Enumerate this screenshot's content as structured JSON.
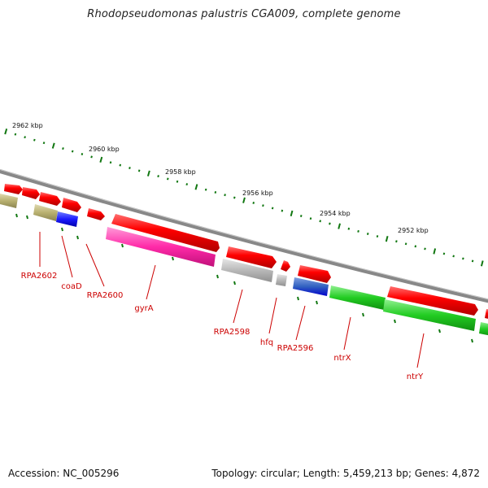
{
  "title": "Rhodopseudomonas palustris CGA009, complete genome",
  "footer": {
    "accession": "Accession: NC_005296",
    "topology": "Topology: circular; Length: 5,459,213 bp; Genes: 4,872"
  },
  "coordinate_labels": [
    "2962 kbp",
    "2960 kbp",
    "2958 kbp",
    "2956 kbp",
    "2954 kbp",
    "2952 kbp"
  ],
  "gene_labels": [
    "RPA2602",
    "coaD",
    "RPA2600",
    "gyrA",
    "RPA2598",
    "hfq",
    "RPA2596",
    "ntrX",
    "ntrY"
  ],
  "colors": {
    "red": "#ff0000",
    "olive": "#b8b070",
    "blue": "#1a1aff",
    "magenta": "#ff2aa8",
    "gray": "#b8b8b8",
    "green": "#22cc22",
    "tick": "#117711",
    "backbone": "#888888",
    "label": "#cc0000"
  }
}
